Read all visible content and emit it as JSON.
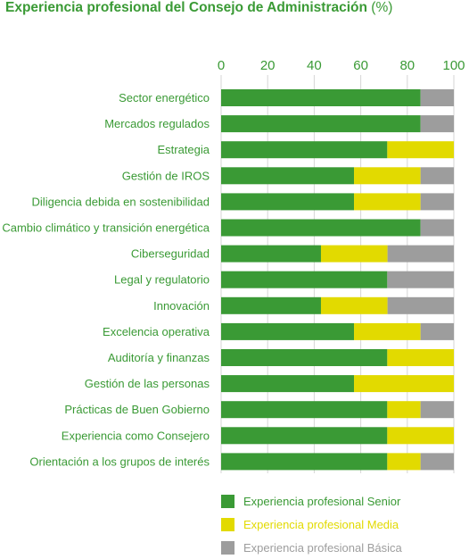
{
  "title": {
    "main": "Experiencia profesional del Consejo de Administración",
    "unit": "(%)"
  },
  "colors": {
    "text": "#3a9a35",
    "grid": "#d6d6d6",
    "senior": "#3a9a35",
    "media": "#e2da00",
    "basica": "#9d9d9d"
  },
  "chart_data": {
    "type": "bar",
    "orientation": "horizontal",
    "stacked": true,
    "title": "Experiencia profesional del Consejo de Administración (%)",
    "xlim": [
      0,
      100
    ],
    "xticks": [
      0,
      20,
      40,
      60,
      80,
      100
    ],
    "axis_position": "top",
    "grid": true,
    "legend_position": "bottom",
    "categories": [
      "Sector energético",
      "Mercados regulados",
      "Estrategia",
      "Gestión de IROS",
      "Diligencia debida en sostenibilidad",
      "Cambio climático y transición energética",
      "Ciberseguridad",
      "Legal y regulatorio",
      "Innovación",
      "Excelencia operativa",
      "Auditoría y finanzas",
      "Gestión de las personas",
      "Prácticas de Buen Gobierno",
      "Experiencia como Consejero",
      "Orientación a los grupos de interés"
    ],
    "series": [
      {
        "name": "Experiencia profesional Senior",
        "color": "#3a9a35",
        "values": [
          85.7,
          85.7,
          71.4,
          57.1,
          57.1,
          85.7,
          42.9,
          71.4,
          42.9,
          57.1,
          71.4,
          57.1,
          71.4,
          71.4,
          71.4
        ]
      },
      {
        "name": "Experiencia profesional Media",
        "color": "#e2da00",
        "values": [
          0,
          0,
          28.6,
          28.6,
          28.6,
          0,
          28.6,
          0,
          28.6,
          28.6,
          28.6,
          42.9,
          14.3,
          28.6,
          14.3
        ]
      },
      {
        "name": "Experiencia profesional Básica",
        "color": "#9d9d9d",
        "values": [
          14.3,
          14.3,
          0,
          14.3,
          14.3,
          14.3,
          28.5,
          28.6,
          28.5,
          14.3,
          0,
          0,
          14.3,
          0,
          14.3
        ]
      }
    ]
  }
}
